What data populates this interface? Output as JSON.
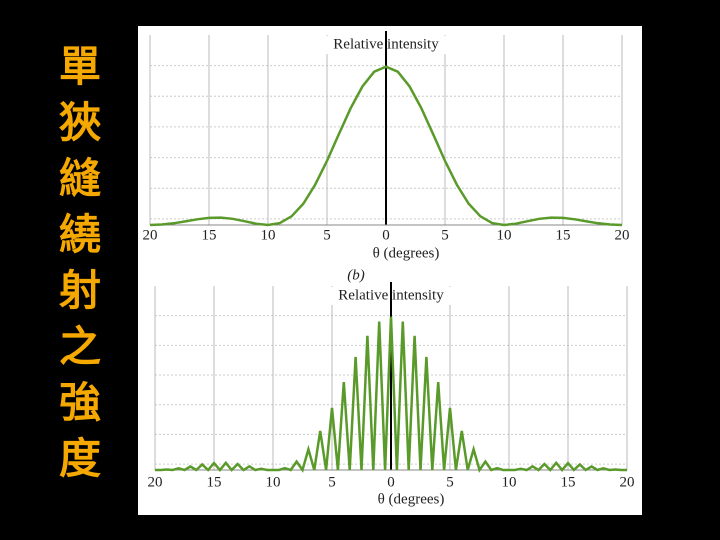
{
  "slide": {
    "title": "單狹縫繞射之強度"
  },
  "chart_data": [
    {
      "type": "line",
      "label_top": "Relative intensity",
      "xlabel": "θ (degrees)",
      "annotation": "(b)",
      "color": "#5a9a2a",
      "xlim": [
        -20,
        20
      ],
      "ylim": [
        0,
        1.2
      ],
      "xticks": [
        {
          "value": -20,
          "label": "20"
        },
        {
          "value": -15,
          "label": "15"
        },
        {
          "value": -10,
          "label": "10"
        },
        {
          "value": -5,
          "label": "5"
        },
        0,
        5,
        10,
        15,
        20
      ],
      "x": [
        -20,
        -19,
        -18,
        -17,
        -16,
        -15,
        -14,
        -13,
        -12,
        -11,
        -10,
        -9,
        -8,
        -7,
        -6,
        -5,
        -4,
        -3,
        -2,
        -1,
        0,
        1,
        2,
        3,
        4,
        5,
        6,
        7,
        8,
        9,
        10,
        11,
        12,
        13,
        14,
        15,
        16,
        17,
        18,
        19,
        20
      ],
      "values": [
        0,
        0.003,
        0.011,
        0.023,
        0.036,
        0.045,
        0.047,
        0.039,
        0.024,
        0.008,
        0,
        0.012,
        0.055,
        0.135,
        0.255,
        0.405,
        0.573,
        0.737,
        0.875,
        0.968,
        1,
        0.968,
        0.875,
        0.737,
        0.573,
        0.405,
        0.255,
        0.135,
        0.055,
        0.012,
        0,
        0.008,
        0.024,
        0.039,
        0.047,
        0.045,
        0.036,
        0.023,
        0.011,
        0.003,
        0
      ]
    },
    {
      "type": "line",
      "label_top": "Relative intensity",
      "xlabel": "θ (degrees)",
      "color": "#5a9a2a",
      "xlim": [
        -20,
        20
      ],
      "ylim": [
        0,
        1.2
      ],
      "xticks": [
        {
          "value": -20,
          "label": "20"
        },
        {
          "value": -15,
          "label": "15"
        },
        {
          "value": -10,
          "label": "10"
        },
        {
          "value": -5,
          "label": "5"
        },
        0,
        5,
        10,
        15,
        20
      ],
      "x": [
        -20,
        -19.5,
        -19,
        -18.5,
        -18,
        -17.5,
        -17,
        -16.5,
        -16,
        -15.5,
        -15,
        -14.5,
        -14,
        -13.5,
        -13,
        -12.5,
        -12,
        -11.5,
        -11,
        -10.5,
        -10,
        -9.5,
        -9,
        -8.5,
        -8,
        -7.5,
        -7,
        -6.5,
        -6,
        -5.5,
        -5,
        -4.5,
        -4,
        -3.5,
        -3,
        -2.5,
        -2,
        -1.5,
        -1,
        -0.5,
        0,
        0.5,
        1,
        1.5,
        2,
        2.5,
        3,
        3.5,
        4,
        4.5,
        5,
        5.5,
        6,
        6.5,
        7,
        7.5,
        8,
        8.5,
        9,
        9.5,
        10,
        10.5,
        11,
        11.5,
        12,
        12.5,
        13,
        13.5,
        14,
        14.5,
        15,
        15.5,
        16,
        16.5,
        17,
        17.5,
        18,
        18.5,
        19,
        19.5,
        20
      ],
      "values": [
        0,
        0,
        0.003,
        0,
        0.011,
        0,
        0.023,
        0,
        0.036,
        0,
        0.045,
        0,
        0.047,
        0,
        0.039,
        0,
        0.024,
        0,
        0.008,
        0,
        0,
        0,
        0.012,
        0,
        0.055,
        0,
        0.135,
        0,
        0.255,
        0,
        0.405,
        0,
        0.573,
        0,
        0.737,
        0,
        0.875,
        0,
        0.968,
        0,
        1,
        0,
        0.968,
        0,
        0.875,
        0,
        0.737,
        0,
        0.573,
        0,
        0.405,
        0,
        0.255,
        0,
        0.135,
        0,
        0.055,
        0,
        0.012,
        0,
        0,
        0,
        0.008,
        0,
        0.024,
        0,
        0.039,
        0,
        0.047,
        0,
        0.045,
        0,
        0.036,
        0,
        0.023,
        0,
        0.011,
        0,
        0.003,
        0,
        0
      ]
    }
  ]
}
